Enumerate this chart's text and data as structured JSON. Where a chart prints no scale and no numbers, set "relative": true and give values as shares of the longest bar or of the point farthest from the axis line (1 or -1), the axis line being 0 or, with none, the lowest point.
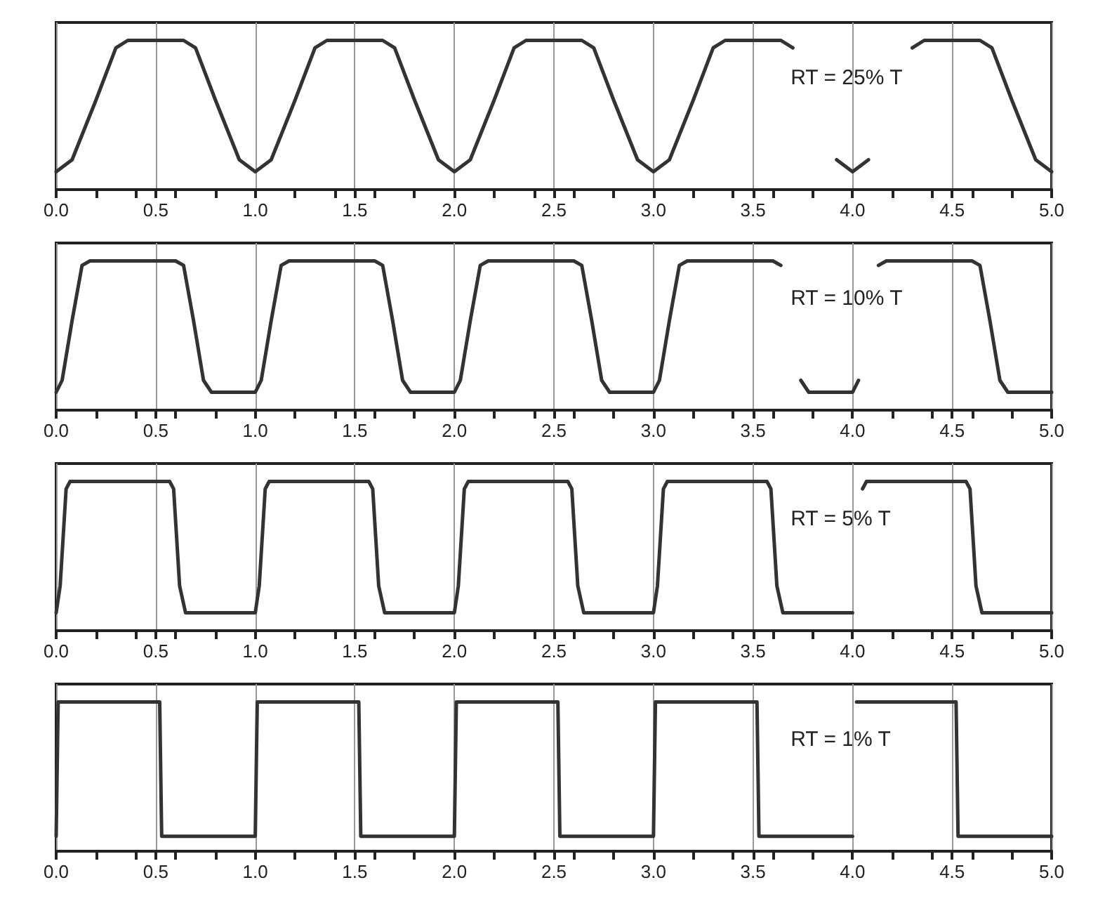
{
  "chart_data": [
    {
      "type": "line",
      "relative": true,
      "color": "#333333",
      "marker": "none",
      "line_style": "solid",
      "grid": "x",
      "annotations": [
        "RT = 25% T"
      ],
      "xlim": [
        0,
        5
      ],
      "xticks": [
        {
          "value": 0,
          "label": "0.0"
        },
        {
          "value": 0.5,
          "label": "0.5"
        },
        {
          "value": 1,
          "label": "1.0"
        },
        {
          "value": 1.5,
          "label": "1.5"
        },
        {
          "value": 2,
          "label": "2.0"
        },
        {
          "value": 2.5,
          "label": "2.5"
        },
        {
          "value": 3,
          "label": "3.0"
        },
        {
          "value": 3.5,
          "label": "3.5"
        },
        {
          "value": 4,
          "label": "4.0"
        },
        {
          "value": 4.5,
          "label": "4.5"
        },
        {
          "value": 5,
          "label": "5.0"
        }
      ],
      "x": [
        0,
        0.08,
        0.2,
        0.3,
        0.36,
        0.64,
        0.7,
        0.8,
        0.92,
        1,
        1.08,
        1.2,
        1.3,
        1.36,
        1.64,
        1.7,
        1.8,
        1.92,
        2,
        2.08,
        2.2,
        2.3,
        2.36,
        2.64,
        2.7,
        2.8,
        2.92,
        3,
        3.08,
        3.2,
        3.3,
        3.36,
        3.64,
        3.7,
        3.8,
        3.92,
        4,
        4.08,
        4.2,
        4.3,
        4.36,
        4.64,
        4.7,
        4.8,
        4.92,
        5
      ],
      "values": [
        0.12,
        0.2,
        0.6,
        0.95,
        1,
        1,
        0.95,
        0.6,
        0.2,
        0.12,
        0.2,
        0.6,
        0.95,
        1,
        1,
        0.95,
        0.6,
        0.2,
        0.12,
        0.2,
        0.6,
        0.95,
        1,
        1,
        0.95,
        0.6,
        0.2,
        0.12,
        0.2,
        0.6,
        0.95,
        1,
        1,
        0.95,
        null,
        0.2,
        0.12,
        0.2,
        null,
        0.95,
        1,
        1,
        0.95,
        0.6,
        0.2,
        0.12
      ]
    },
    {
      "type": "line",
      "relative": true,
      "color": "#333333",
      "marker": "none",
      "line_style": "solid",
      "grid": "x",
      "annotations": [
        "RT = 10% T"
      ],
      "xlim": [
        0,
        5
      ],
      "xticks": [
        {
          "value": 0,
          "label": "0.0"
        },
        {
          "value": 0.5,
          "label": "0.5"
        },
        {
          "value": 1,
          "label": "1.0"
        },
        {
          "value": 1.5,
          "label": "1.5"
        },
        {
          "value": 2,
          "label": "2.0"
        },
        {
          "value": 2.5,
          "label": "2.5"
        },
        {
          "value": 3,
          "label": "3.0"
        },
        {
          "value": 3.5,
          "label": "3.5"
        },
        {
          "value": 4,
          "label": "4.0"
        },
        {
          "value": 4.5,
          "label": "4.5"
        },
        {
          "value": 5,
          "label": "5.0"
        }
      ],
      "x": [
        0,
        0.03,
        0.08,
        0.13,
        0.17,
        0.6,
        0.64,
        0.69,
        0.74,
        0.78,
        1,
        1.03,
        1.08,
        1.13,
        1.17,
        1.6,
        1.64,
        1.69,
        1.74,
        1.78,
        2,
        2.03,
        2.08,
        2.13,
        2.17,
        2.6,
        2.64,
        2.69,
        2.74,
        2.78,
        3,
        3.03,
        3.08,
        3.13,
        3.17,
        3.6,
        3.64,
        3.69,
        3.74,
        3.78,
        4,
        4.03,
        4.08,
        4.13,
        4.17,
        4.6,
        4.64,
        4.69,
        4.74,
        4.78,
        5
      ],
      "values": [
        0.12,
        0.2,
        0.6,
        0.97,
        1,
        1,
        0.97,
        0.6,
        0.2,
        0.12,
        0.12,
        0.2,
        0.6,
        0.97,
        1,
        1,
        0.97,
        0.6,
        0.2,
        0.12,
        0.12,
        0.2,
        0.6,
        0.97,
        1,
        1,
        0.97,
        0.6,
        0.2,
        0.12,
        0.12,
        0.2,
        0.6,
        0.97,
        1,
        1,
        0.97,
        null,
        0.2,
        0.12,
        0.12,
        0.2,
        null,
        0.97,
        1,
        1,
        0.97,
        0.6,
        0.2,
        0.12,
        0.12
      ]
    },
    {
      "type": "line",
      "relative": true,
      "color": "#333333",
      "marker": "none",
      "line_style": "solid",
      "grid": "x",
      "annotations": [
        "RT = 5% T"
      ],
      "xlim": [
        0,
        5
      ],
      "xticks": [
        {
          "value": 0,
          "label": "0.0"
        },
        {
          "value": 0.5,
          "label": "0.5"
        },
        {
          "value": 1,
          "label": "1.0"
        },
        {
          "value": 1.5,
          "label": "1.5"
        },
        {
          "value": 2,
          "label": "2.0"
        },
        {
          "value": 2.5,
          "label": "2.5"
        },
        {
          "value": 3,
          "label": "3.0"
        },
        {
          "value": 3.5,
          "label": "3.5"
        },
        {
          "value": 4,
          "label": "4.0"
        },
        {
          "value": 4.5,
          "label": "4.5"
        },
        {
          "value": 5,
          "label": "5.0"
        }
      ],
      "x": [
        0,
        0.02,
        0.05,
        0.07,
        0.57,
        0.59,
        0.62,
        0.65,
        1,
        1.02,
        1.05,
        1.07,
        1.57,
        1.59,
        1.62,
        1.65,
        2,
        2.02,
        2.05,
        2.07,
        2.57,
        2.59,
        2.62,
        2.65,
        3,
        3.02,
        3.05,
        3.07,
        3.57,
        3.59,
        3.62,
        3.65,
        4,
        4.02,
        4.05,
        4.07,
        4.57,
        4.59,
        4.62,
        4.65,
        5
      ],
      "values": [
        0.12,
        0.3,
        0.95,
        1,
        1,
        0.95,
        0.3,
        0.12,
        0.12,
        0.3,
        0.95,
        1,
        1,
        0.95,
        0.3,
        0.12,
        0.12,
        0.3,
        0.95,
        1,
        1,
        0.95,
        0.3,
        0.12,
        0.12,
        0.3,
        0.95,
        1,
        1,
        0.95,
        0.3,
        0.12,
        0.12,
        null,
        0.95,
        1,
        1,
        0.95,
        0.3,
        0.12,
        0.12
      ]
    },
    {
      "type": "line",
      "relative": true,
      "color": "#333333",
      "marker": "none",
      "line_style": "solid",
      "grid": "x",
      "annotations": [
        "RT = 1% T"
      ],
      "xlim": [
        0,
        5
      ],
      "xticks": [
        {
          "value": 0,
          "label": "0.0"
        },
        {
          "value": 0.5,
          "label": "0.5"
        },
        {
          "value": 1,
          "label": "1.0"
        },
        {
          "value": 1.5,
          "label": "1.5"
        },
        {
          "value": 2,
          "label": "2.0"
        },
        {
          "value": 2.5,
          "label": "2.5"
        },
        {
          "value": 3,
          "label": "3.0"
        },
        {
          "value": 3.5,
          "label": "3.5"
        },
        {
          "value": 4,
          "label": "4.0"
        },
        {
          "value": 4.5,
          "label": "4.5"
        },
        {
          "value": 5,
          "label": "5.0"
        }
      ],
      "x": [
        0,
        0.01,
        0.52,
        0.53,
        1,
        1.01,
        1.52,
        1.53,
        2,
        2.01,
        2.52,
        2.53,
        3,
        3.01,
        3.52,
        3.53,
        4,
        4.01,
        4.02,
        4.52,
        4.53,
        5
      ],
      "values": [
        0.1,
        1,
        1,
        0.1,
        0.1,
        1,
        1,
        0.1,
        0.1,
        1,
        1,
        0.1,
        0.1,
        1,
        1,
        0.1,
        0.1,
        null,
        1,
        1,
        0.1,
        0.1
      ]
    }
  ]
}
